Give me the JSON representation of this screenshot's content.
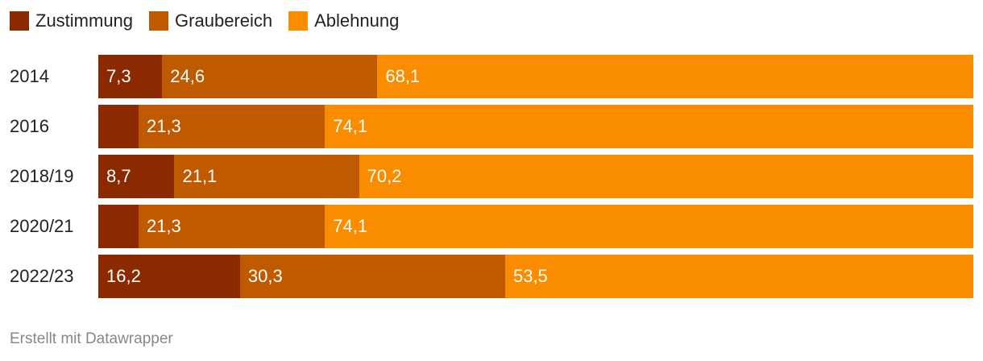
{
  "chart_data": {
    "type": "bar",
    "orientation": "horizontal",
    "stacked": true,
    "categories": [
      "2014",
      "2016",
      "2018/19",
      "2020/21",
      "2022/23"
    ],
    "series": [
      {
        "name": "Zustimmung",
        "color": "#8B2A00",
        "values": [
          7.3,
          4.6,
          8.7,
          4.6,
          16.2
        ],
        "labels": [
          "7,3",
          "",
          "8,7",
          "",
          "16,2"
        ]
      },
      {
        "name": "Graubereich",
        "color": "#C05A00",
        "values": [
          24.6,
          21.3,
          21.1,
          21.3,
          30.3
        ],
        "labels": [
          "24,6",
          "21,3",
          "21,1",
          "21,3",
          "30,3"
        ]
      },
      {
        "name": "Ablehnung",
        "color": "#FA8C00",
        "values": [
          68.1,
          74.1,
          70.2,
          74.1,
          53.5
        ],
        "labels": [
          "68,1",
          "74,1",
          "70,2",
          "74,1",
          "53,5"
        ]
      }
    ],
    "xlim": [
      0,
      100
    ],
    "legend_position": "top-left",
    "grid": false
  },
  "footer": {
    "credit": "Erstellt mit Datawrapper"
  }
}
